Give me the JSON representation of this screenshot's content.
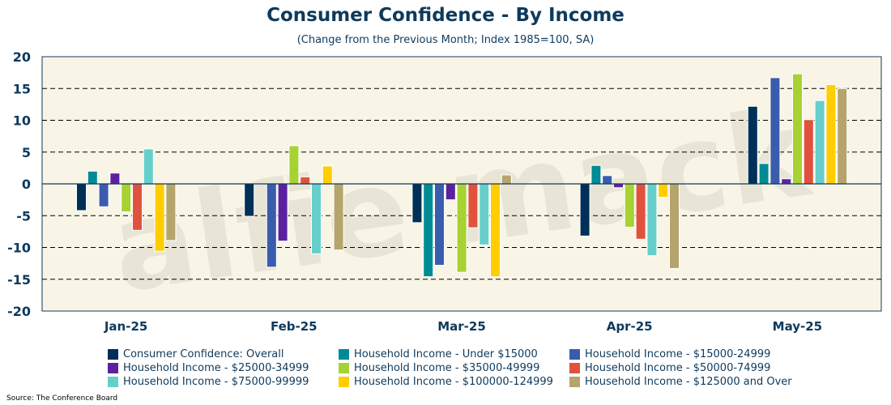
{
  "chart_data": {
    "type": "bar",
    "title": "Consumer Confidence - By Income",
    "subtitle": "(Change from the Previous Month; Index 1985=100, SA)",
    "categories": [
      "Jan-25",
      "Feb-25",
      "Mar-25",
      "Apr-25",
      "May-25"
    ],
    "ylim": [
      -20,
      20
    ],
    "yticks": [
      -20,
      -15,
      -10,
      -5,
      0,
      5,
      10,
      15,
      20
    ],
    "grid": "horizontal-dashed",
    "legend_position": "bottom",
    "series": [
      {
        "name": "Consumer Confidence: Overall",
        "color": "#003057",
        "values": [
          -4.2,
          -5.1,
          -6.1,
          -8.2,
          12.2
        ]
      },
      {
        "name": "Household Income - Under $15000",
        "color": "#008b94",
        "values": [
          2.0,
          0.0,
          -14.6,
          2.9,
          3.2
        ]
      },
      {
        "name": "Household Income - $15000-24999",
        "color": "#3a5cad",
        "values": [
          -3.6,
          -13.1,
          -12.8,
          1.3,
          16.7
        ]
      },
      {
        "name": "Household Income - $25000-34999",
        "color": "#5b22a0",
        "values": [
          1.7,
          -9.0,
          -2.5,
          -0.6,
          0.8
        ]
      },
      {
        "name": "Household Income - $35000-49999",
        "color": "#a6d232",
        "values": [
          -4.4,
          6.0,
          -13.9,
          -6.8,
          17.3
        ]
      },
      {
        "name": "Household Income - $50000-74999",
        "color": "#e1523d",
        "values": [
          -7.3,
          1.1,
          -6.9,
          -8.7,
          10.1
        ]
      },
      {
        "name": "Household Income - $75000-99999",
        "color": "#66cfcc",
        "values": [
          5.5,
          -11.0,
          -9.6,
          -11.3,
          13.1
        ]
      },
      {
        "name": "Household Income - $100000-124999",
        "color": "#ffcd00",
        "values": [
          -10.6,
          2.8,
          -14.6,
          -2.1,
          15.6
        ]
      },
      {
        "name": "Household Income - $125000 and Over",
        "color": "#b5a46c",
        "values": [
          -8.9,
          -10.4,
          1.4,
          -13.3,
          15.0
        ]
      }
    ]
  },
  "source": "Source: The Conference Board",
  "watermark": "alfie mack"
}
